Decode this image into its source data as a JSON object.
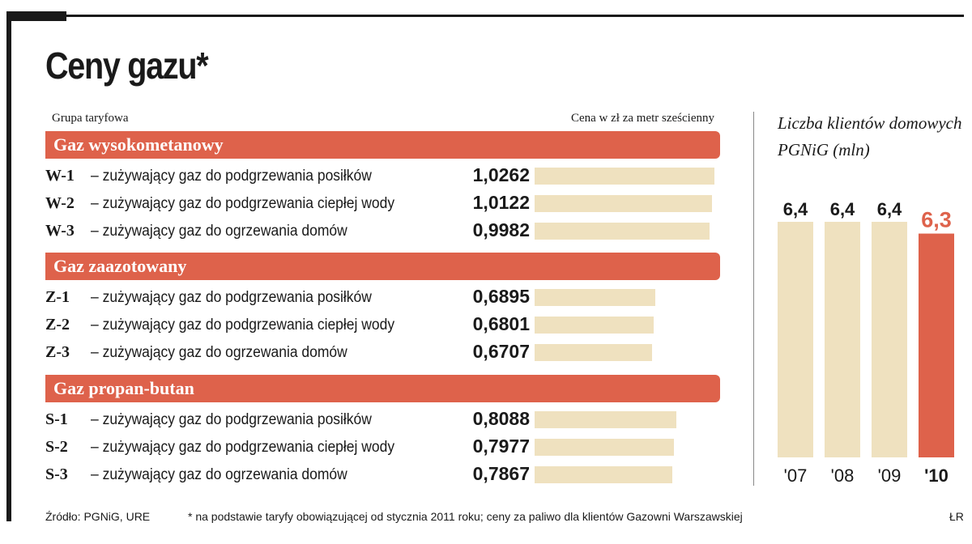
{
  "title": "Ceny gazu*",
  "header": {
    "left": "Grupa taryfowa",
    "right": "Cena w zł za metr sześcienny"
  },
  "groups": [
    {
      "name": "Gaz wysokometanowy",
      "rows": [
        {
          "code": "W-1",
          "desc": "– zużywający gaz do podgrzewania posiłków",
          "value": "1,0262",
          "num": 1.0262
        },
        {
          "code": "W-2",
          "desc": "– zużywający gaz do podgrzewania ciepłej wody",
          "value": "1,0122",
          "num": 1.0122
        },
        {
          "code": "W-3",
          "desc": "– zużywający gaz do ogrzewania domów",
          "value": "0,9982",
          "num": 0.9982
        }
      ]
    },
    {
      "name": "Gaz zaazotowany",
      "rows": [
        {
          "code": "Z-1",
          "desc": "– zużywający gaz do podgrzewania posiłków",
          "value": "0,6895",
          "num": 0.6895
        },
        {
          "code": "Z-2",
          "desc": "– zużywający gaz do podgrzewania ciepłej wody",
          "value": "0,6801",
          "num": 0.6801
        },
        {
          "code": "Z-3",
          "desc": "– zużywający gaz do ogrzewania domów",
          "value": "0,6707",
          "num": 0.6707
        }
      ]
    },
    {
      "name": "Gaz propan-butan",
      "rows": [
        {
          "code": "S-1",
          "desc": "– zużywający gaz do podgrzewania posiłków",
          "value": "0,8088",
          "num": 0.8088
        },
        {
          "code": "S-2",
          "desc": "– zużywający gaz do podgrzewania ciepłej wody",
          "value": "0,7977",
          "num": 0.7977
        },
        {
          "code": "S-3",
          "desc": "– zużywający gaz do ogrzewania domów",
          "value": "0,7867",
          "num": 0.7867
        }
      ]
    }
  ],
  "chart_data": [
    {
      "type": "bar",
      "orientation": "horizontal",
      "categories": [
        "W-1",
        "W-2",
        "W-3",
        "Z-1",
        "Z-2",
        "Z-3",
        "S-1",
        "S-2",
        "S-3"
      ],
      "values": [
        1.0262,
        1.0122,
        0.9982,
        0.6895,
        0.6801,
        0.6707,
        0.8088,
        0.7977,
        0.7867
      ],
      "title": "Ceny gazu*",
      "xlabel": "Cena w zł za metr sześcienny",
      "ylabel": "Grupa taryfowa",
      "grid": false,
      "legend": "none"
    },
    {
      "type": "bar",
      "orientation": "vertical",
      "title": "Liczba klientów domowych PGNiG (mln)",
      "categories": [
        "'07",
        "'08",
        "'09",
        "'10"
      ],
      "value_labels": [
        "6,4",
        "6,4",
        "6,4",
        "6,3"
      ],
      "values": [
        6.4,
        6.4,
        6.4,
        6.3
      ],
      "ylim": [
        0,
        6.4
      ],
      "highlight_index": 3,
      "grid": false,
      "legend": "none"
    }
  ],
  "colors": {
    "accent": "#de624b",
    "bar_fill": "#efe1bf",
    "text": "#1a1a1a",
    "frame": "#1a1a1a"
  },
  "footer": {
    "source": "Źródło: PGNiG, URE",
    "note": "* na podstawie taryfy obowiązującej od stycznia 2011 roku; ceny za paliwo dla klientów Gazowni Warszawskiej",
    "author": "ŁR"
  }
}
